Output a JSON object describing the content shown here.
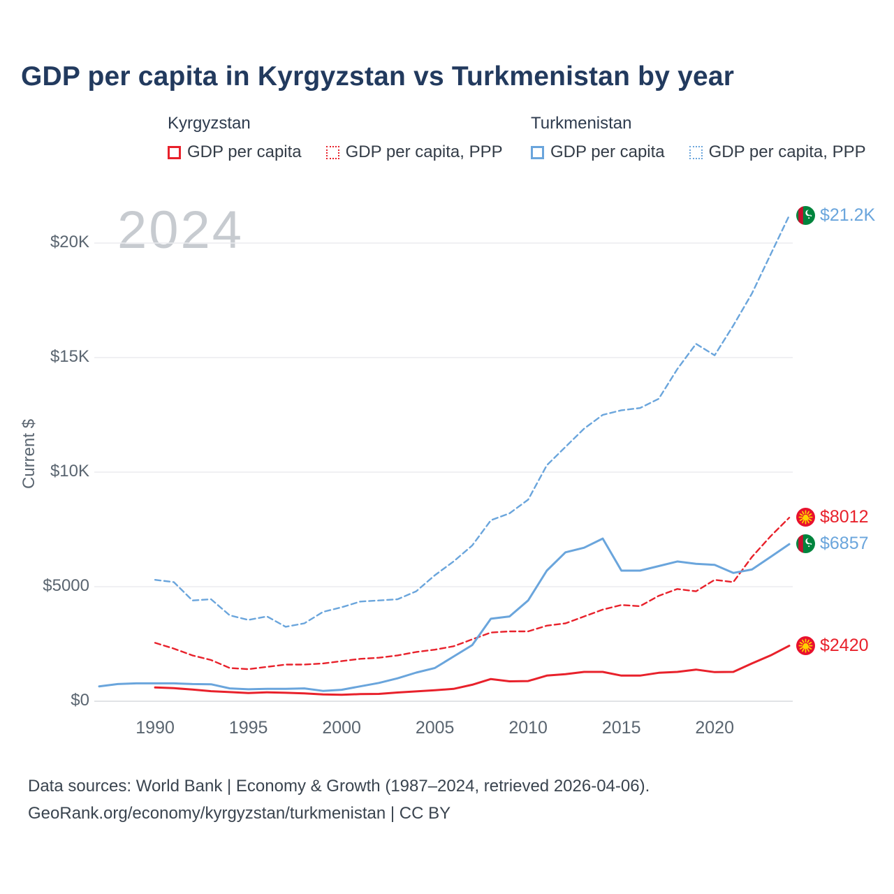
{
  "page": {
    "title": "GDP per capita in Kyrgyzstan vs Turkmenistan by year",
    "watermark": "2024",
    "footer_line1": "Data sources: World Bank | Economy & Growth (1987–2024, retrieved 2026-04-06).",
    "footer_line2": "GeoRank.org/economy/kyrgyzstan/turkmenistan | CC BY"
  },
  "legend": {
    "kyrgyzstan": {
      "country": "Kyrgyzstan",
      "items": [
        {
          "label": "GDP per capita",
          "line_style": "solid"
        },
        {
          "label": "GDP per capita, PPP",
          "line_style": "dotted"
        }
      ]
    },
    "turkmenistan": {
      "country": "Turkmenistan",
      "items": [
        {
          "label": "GDP per capita",
          "line_style": "solid"
        },
        {
          "label": "GDP per capita, PPP",
          "line_style": "dotted"
        }
      ]
    }
  },
  "colors": {
    "kyrgyzstan": "#e8212b",
    "turkmenistan": "#6aa5dc",
    "title": "#223a5e",
    "grid": "#ececef",
    "tick": "#5a6570",
    "watermark": "#c7cbd0"
  },
  "chart_data": {
    "type": "line",
    "title": "GDP per capita in Kyrgyzstan vs Turkmenistan by year",
    "xlabel": "",
    "ylabel": "Current $",
    "x_range": [
      1987,
      2024
    ],
    "ylim": [
      0,
      22000
    ],
    "grid": true,
    "x_ticks": [
      1990,
      1995,
      2000,
      2005,
      2010,
      2015,
      2020
    ],
    "y_ticks": [
      {
        "value": 0,
        "label": "$0"
      },
      {
        "value": 5000,
        "label": "$5000"
      },
      {
        "value": 10000,
        "label": "$10K"
      },
      {
        "value": 15000,
        "label": "$15K"
      },
      {
        "value": 20000,
        "label": "$20K"
      }
    ],
    "years": [
      1987,
      1988,
      1989,
      1990,
      1991,
      1992,
      1993,
      1994,
      1995,
      1996,
      1997,
      1998,
      1999,
      2000,
      2001,
      2002,
      2003,
      2004,
      2005,
      2006,
      2007,
      2008,
      2009,
      2010,
      2011,
      2012,
      2013,
      2014,
      2015,
      2016,
      2017,
      2018,
      2019,
      2020,
      2021,
      2022,
      2023,
      2024
    ],
    "series": [
      {
        "id": "turkmenistan-gdp-ppp",
        "name": "Turkmenistan GDP per capita, PPP",
        "country": "Turkmenistan",
        "color_key": "turkmenistan",
        "dash": true,
        "flag": "turkmenistan",
        "end_label": "$21.2K",
        "values": [
          null,
          null,
          null,
          5300,
          5200,
          4400,
          4450,
          3750,
          3550,
          3700,
          3250,
          3400,
          3900,
          4100,
          4350,
          4400,
          4450,
          4800,
          5500,
          6100,
          6800,
          7900,
          8200,
          8800,
          10300,
          11100,
          11900,
          12500,
          12700,
          12800,
          13200,
          14500,
          15600,
          15100,
          16400,
          17800,
          19500,
          21200
        ]
      },
      {
        "id": "kyrgyzstan-gdp-ppp",
        "name": "Kyrgyzstan GDP per capita, PPP",
        "country": "Kyrgyzstan",
        "color_key": "kyrgyzstan",
        "dash": true,
        "flag": "kyrgyzstan",
        "end_label": "$8012",
        "values": [
          null,
          null,
          null,
          2550,
          2300,
          2000,
          1800,
          1450,
          1400,
          1500,
          1600,
          1600,
          1650,
          1750,
          1850,
          1900,
          2000,
          2150,
          2250,
          2400,
          2700,
          3000,
          3050,
          3050,
          3300,
          3400,
          3700,
          4000,
          4200,
          4150,
          4600,
          4900,
          4800,
          5300,
          5200,
          6300,
          7200,
          8012
        ]
      },
      {
        "id": "turkmenistan-gdp",
        "name": "Turkmenistan GDP per capita",
        "country": "Turkmenistan",
        "color_key": "turkmenistan",
        "dash": false,
        "flag": "turkmenistan",
        "end_label": "$6857",
        "values": [
          650,
          750,
          780,
          780,
          780,
          750,
          740,
          560,
          520,
          540,
          540,
          560,
          450,
          500,
          650,
          800,
          1000,
          1250,
          1450,
          1950,
          2450,
          3600,
          3700,
          4400,
          5700,
          6500,
          6700,
          7100,
          5700,
          5700,
          5900,
          6100,
          6000,
          5950,
          5600,
          5750,
          6300,
          6857
        ]
      },
      {
        "id": "kyrgyzstan-gdp",
        "name": "Kyrgyzstan GDP per capita",
        "country": "Kyrgyzstan",
        "color_key": "kyrgyzstan",
        "dash": false,
        "flag": "kyrgyzstan",
        "end_label": "$2420",
        "values": [
          null,
          null,
          null,
          600,
          570,
          510,
          440,
          400,
          360,
          390,
          370,
          340,
          300,
          280,
          310,
          320,
          380,
          430,
          480,
          540,
          720,
          970,
          870,
          880,
          1120,
          1180,
          1280,
          1280,
          1120,
          1120,
          1240,
          1280,
          1380,
          1270,
          1280,
          1650,
          2000,
          2420
        ]
      }
    ]
  }
}
